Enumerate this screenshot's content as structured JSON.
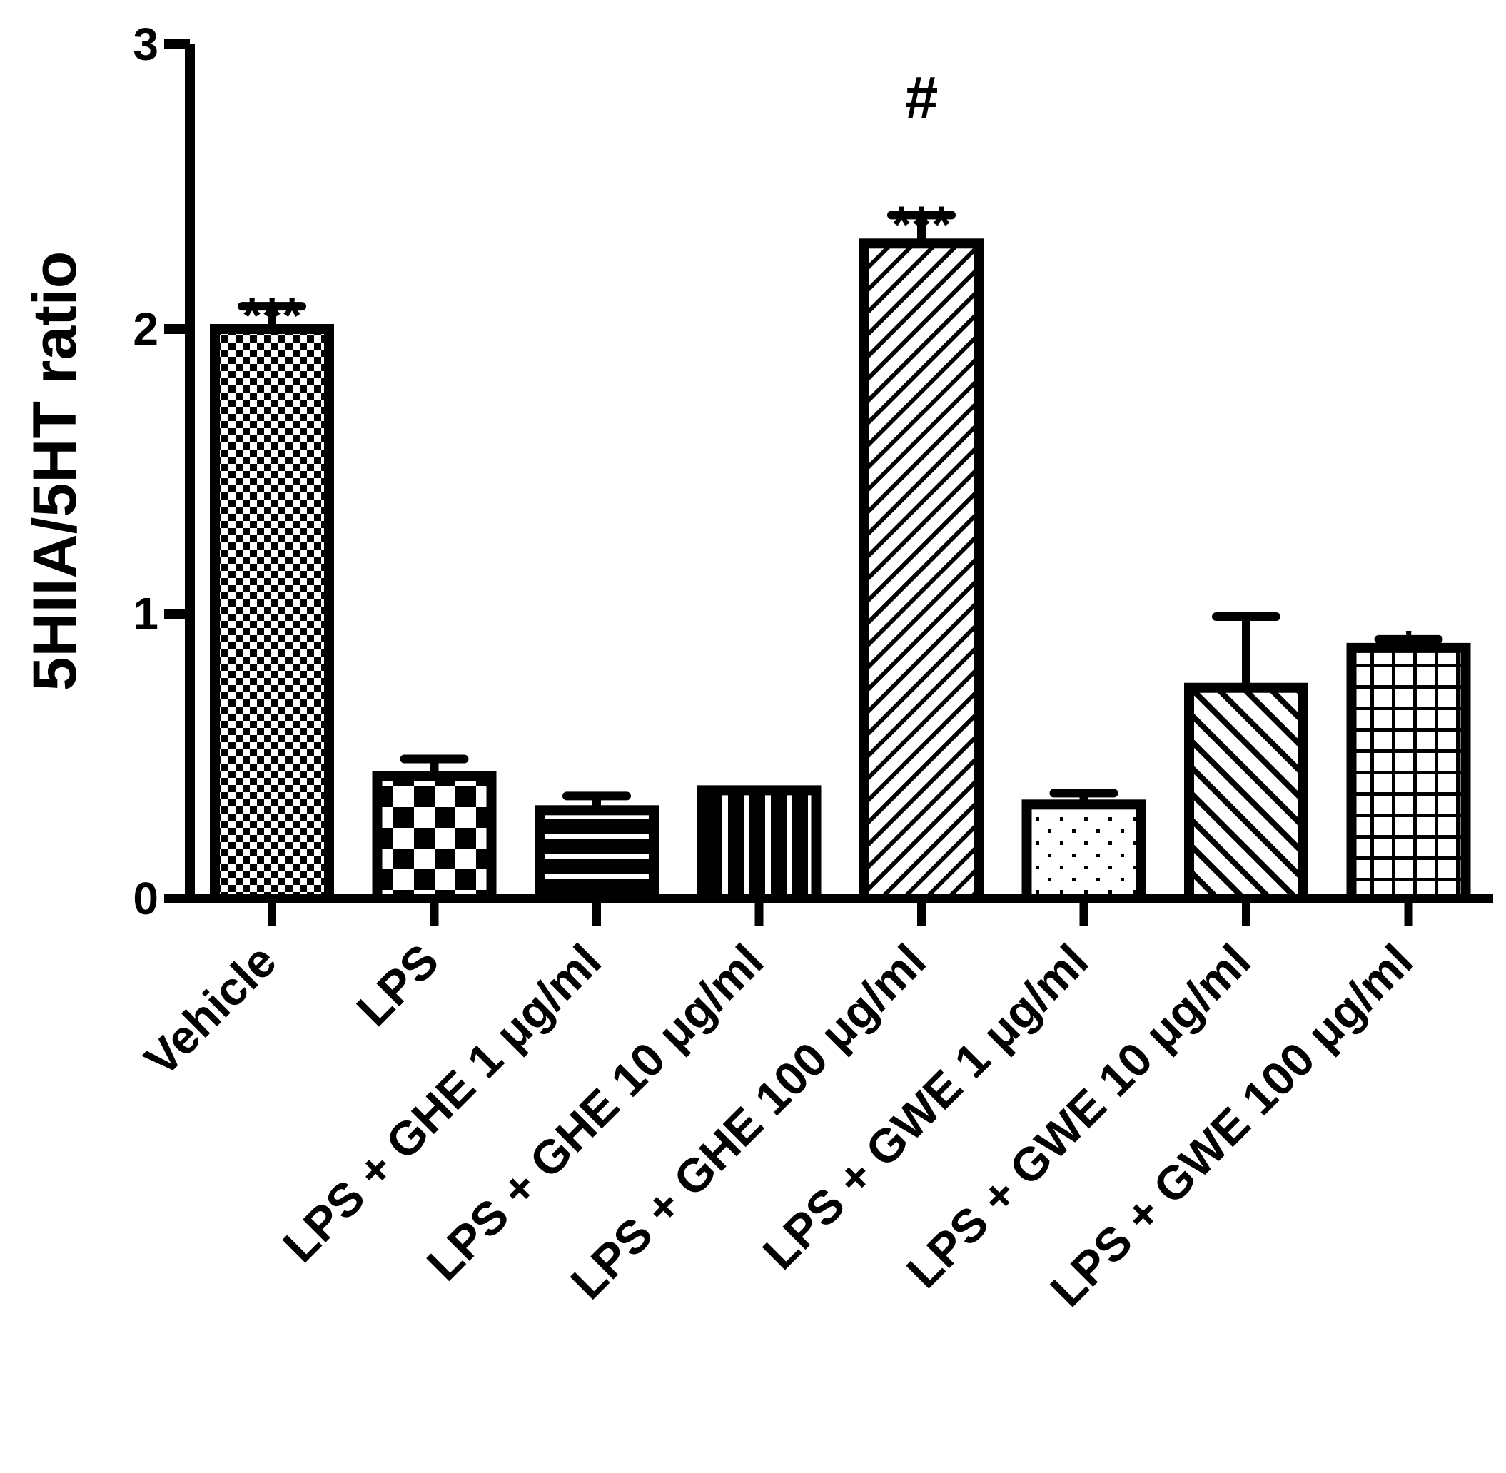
{
  "chart_data": {
    "type": "bar",
    "title": "",
    "xlabel": "",
    "ylabel": "5HIIA/5HT ratio",
    "ylim": [
      0,
      3
    ],
    "yticks": [
      0,
      1,
      2,
      3
    ],
    "yticks_text": [
      "0",
      "1",
      "2",
      "3"
    ],
    "grid": false,
    "legend": "none",
    "bar_color": "#000000",
    "categories": [
      "Vehicle",
      "LPS",
      "LPS + GHE 1 μg/ml",
      "LPS + GHE 10 μg/ml",
      "LPS + GHE 100 μg/ml",
      "LPS + GWE 1 μg/ml",
      "LPS + GWE 10 μg/ml",
      "LPS + GWE 100 μg/ml"
    ],
    "values": [
      2.0,
      0.43,
      0.31,
      0.38,
      2.3,
      0.33,
      0.74,
      0.88
    ],
    "errors": [
      0.08,
      0.06,
      0.05,
      0.0,
      0.1,
      0.04,
      0.25,
      0.03
    ],
    "patterns": [
      "fine-checker",
      "checker",
      "horizontal",
      "vertical",
      "diagonal-up",
      "dots",
      "diagonal-down",
      "grid"
    ],
    "annotations": [
      {
        "category": "Vehicle",
        "text": "***"
      },
      {
        "category": "LPS + GHE 100 μg/ml",
        "text": "***"
      },
      {
        "category": "LPS + GHE 100 μg/ml",
        "text": "#"
      },
      {
        "category": "LPS + GWE 100 μg/ml",
        "text": "*"
      }
    ]
  }
}
